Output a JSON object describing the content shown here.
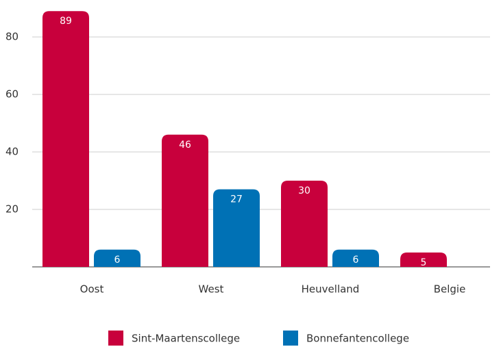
{
  "chart_data": {
    "type": "bar",
    "categories": [
      "Oost",
      "West",
      "Heuvelland",
      "Belgie"
    ],
    "series": [
      {
        "name": "Sint-Maartenscollege",
        "color": "#c8003c",
        "values": [
          89,
          46,
          30,
          5
        ]
      },
      {
        "name": "Bonnefantencollege",
        "color": "#0071b5",
        "values": [
          6,
          27,
          6,
          null
        ]
      }
    ],
    "ylim": [
      0,
      90
    ],
    "yticks": [
      20,
      40,
      60,
      80
    ],
    "grid": true
  }
}
